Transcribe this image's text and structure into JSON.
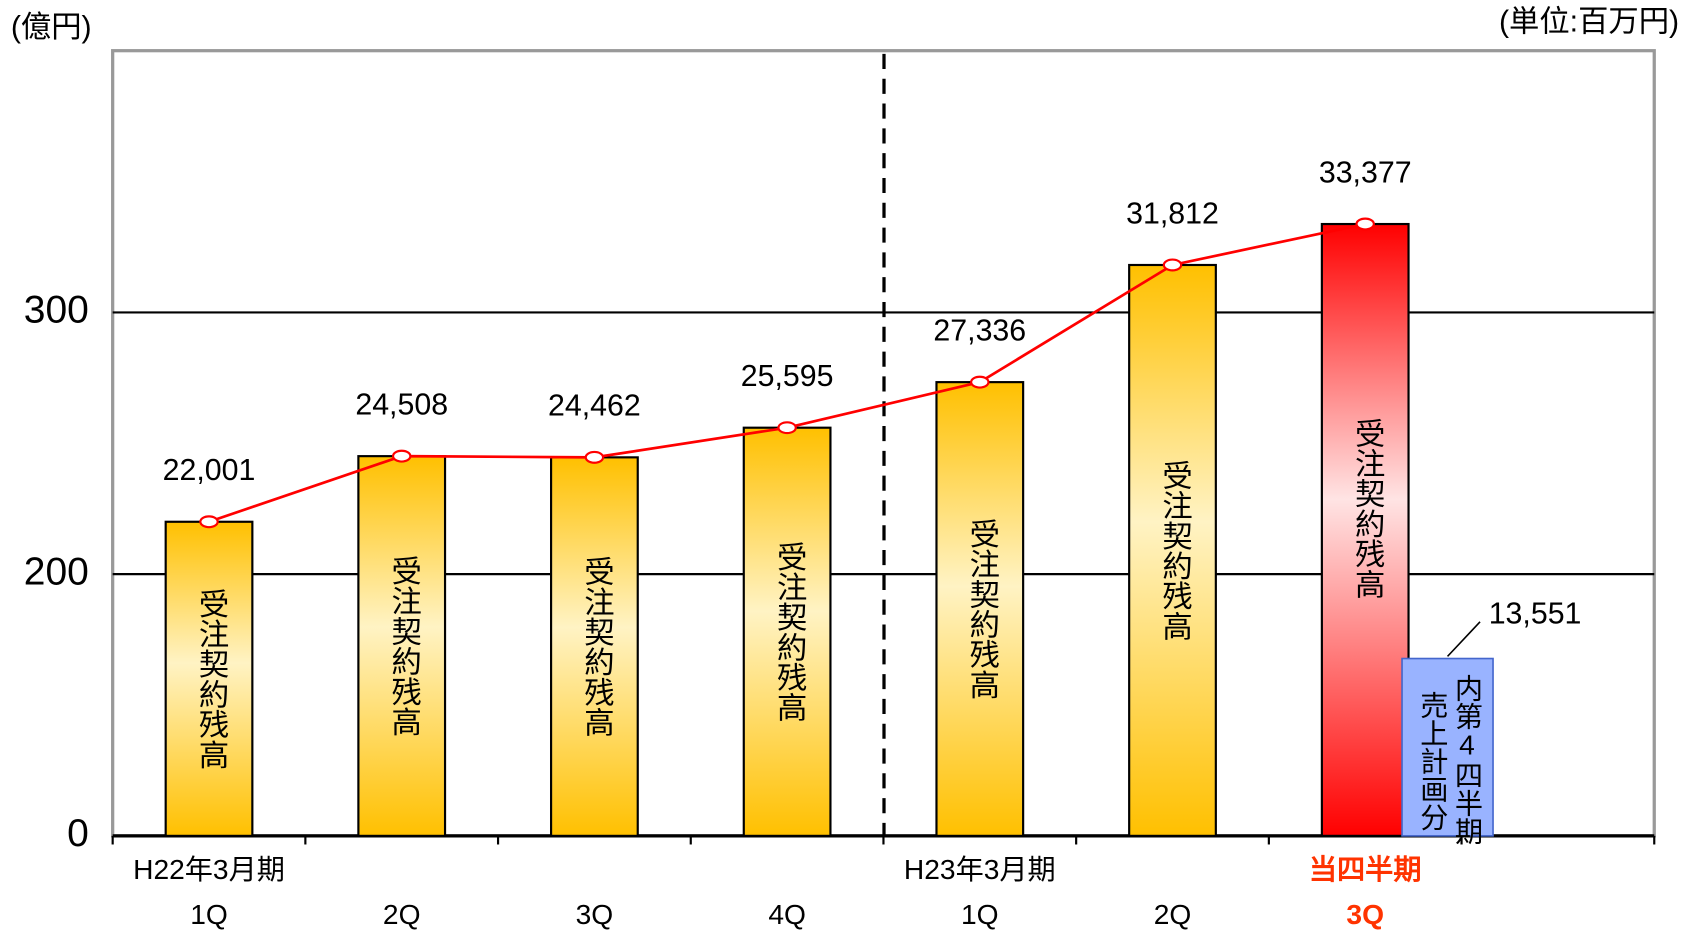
{
  "chart_data": {
    "type": "bar",
    "y_label": "(億円)",
    "unit_note": "(単位:百万円)",
    "categories": [
      "1Q",
      "2Q",
      "3Q",
      "4Q",
      "1Q",
      "2Q",
      "3Q",
      null
    ],
    "category_groups": [
      "H22年3月期",
      null,
      null,
      null,
      "H23年3月期",
      null,
      "当四半期",
      null
    ],
    "category_label_colors": [
      "#000000",
      "#000000",
      "#000000",
      "#000000",
      "#000000",
      "#000000",
      "#ff3300",
      "#000000"
    ],
    "series": [
      {
        "name": "受注契約残高",
        "values": [
          220.01,
          245.08,
          244.62,
          255.95,
          273.36,
          318.12,
          333.77,
          null
        ],
        "value_labels": [
          "22,001",
          "24,508",
          "24,462",
          "25,595",
          "27,336",
          "31,812",
          "33,377",
          null
        ],
        "colors": [
          "#ffc000",
          "#ffc000",
          "#ffc000",
          "#ffc000",
          "#ffc000",
          "#ffc000",
          "#ff0000",
          null
        ],
        "line_color": "#ff0000"
      },
      {
        "name_lines": [
          "内第4四半期",
          "売上計画分"
        ],
        "values": [
          null,
          null,
          null,
          null,
          null,
          null,
          135.51,
          null
        ],
        "value_labels": [
          null,
          null,
          null,
          null,
          null,
          null,
          "13,551",
          null
        ],
        "color": "#99b3ff"
      }
    ],
    "ylim": [
      0,
      400
    ],
    "yticks": [
      0,
      200,
      300
    ],
    "grid": true
  }
}
